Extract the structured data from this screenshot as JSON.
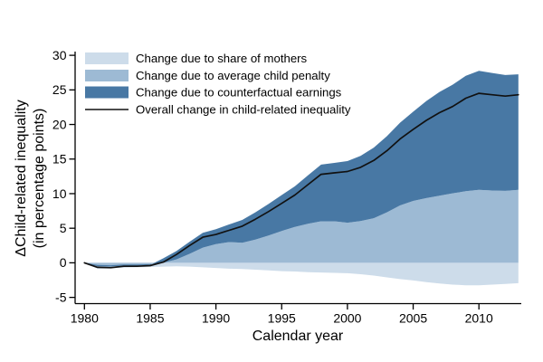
{
  "figure": {
    "x_axis": {
      "title": "Calendar year",
      "ticks": [
        1980,
        1985,
        1990,
        1995,
        2000,
        2005,
        2010
      ]
    },
    "y_axis": {
      "title_line1": "ΔChild-related inequality",
      "title_line2": "(in percentage points)",
      "ticks": [
        -5,
        0,
        5,
        10,
        15,
        20,
        25,
        30
      ]
    },
    "legend": [
      {
        "label": "Change due to share of mothers",
        "swatch": "area",
        "color": "#cddcea"
      },
      {
        "label": "Change due to average child penalty",
        "swatch": "area",
        "color": "#9dbad4"
      },
      {
        "label": "Change due to counterfactual earnings",
        "swatch": "area",
        "color": "#4878a4"
      },
      {
        "label": "Overall change in child-related inequality",
        "swatch": "line",
        "color": "#111111"
      }
    ]
  },
  "chart_data": {
    "type": "area",
    "title": "",
    "xlabel": "Calendar year",
    "ylabel": "ΔChild-related inequality (in percentage points)",
    "xlim": [
      1980,
      2013
    ],
    "ylim": [
      -5,
      30
    ],
    "grid": false,
    "legend_position": "top-left-inside",
    "x": [
      1980,
      1981,
      1982,
      1983,
      1984,
      1985,
      1986,
      1987,
      1988,
      1989,
      1990,
      1991,
      1992,
      1993,
      1994,
      1995,
      1996,
      1997,
      1998,
      1999,
      2000,
      2001,
      2002,
      2003,
      2004,
      2005,
      2006,
      2007,
      2008,
      2009,
      2010,
      2011,
      2012,
      2013
    ],
    "series": [
      {
        "name": "Change due to share of mothers",
        "type": "stacked-area",
        "stack": "negative-from-zero",
        "color": "#cddcea",
        "values": [
          0,
          -0.85,
          -0.8,
          -0.7,
          -0.65,
          -0.6,
          -0.55,
          -0.5,
          -0.55,
          -0.65,
          -0.75,
          -0.85,
          -0.9,
          -1.0,
          -1.1,
          -1.2,
          -1.25,
          -1.35,
          -1.4,
          -1.45,
          -1.5,
          -1.65,
          -1.85,
          -2.1,
          -2.35,
          -2.55,
          -2.8,
          -3.0,
          -3.15,
          -3.25,
          -3.25,
          -3.15,
          -3.05,
          -2.95
        ]
      },
      {
        "name": "Change due to average child penalty",
        "type": "stacked-area",
        "stack": "from-zero",
        "color": "#9dbad4",
        "values": [
          0,
          -0.3,
          -0.35,
          -0.25,
          -0.25,
          -0.2,
          0,
          0.5,
          1.3,
          2.2,
          2.7,
          3.0,
          2.9,
          3.35,
          3.95,
          4.6,
          5.2,
          5.65,
          6.0,
          6.0,
          5.8,
          6.05,
          6.45,
          7.3,
          8.3,
          8.95,
          9.35,
          9.7,
          10.05,
          10.35,
          10.55,
          10.45,
          10.4,
          10.55
        ]
      },
      {
        "name": "Change due to counterfactual earnings",
        "type": "stacked-area",
        "stack": "on-top-of-previous",
        "color": "#4878a4",
        "values": [
          0,
          -0.2,
          -0.2,
          -0.15,
          -0.15,
          -0.12,
          0.65,
          1.2,
          1.75,
          2.15,
          2.15,
          2.55,
          3.3,
          3.95,
          4.55,
          5.2,
          5.85,
          7.0,
          8.2,
          8.45,
          8.9,
          9.4,
          10.2,
          11.0,
          11.95,
          12.9,
          14.05,
          15.0,
          15.7,
          16.7,
          17.2,
          17.0,
          16.75,
          16.7
        ]
      },
      {
        "name": "Overall change in child-related inequality",
        "type": "line",
        "color": "#111111",
        "values": [
          0,
          -0.65,
          -0.7,
          -0.5,
          -0.5,
          -0.4,
          0.1,
          1.2,
          2.5,
          3.7,
          4.1,
          4.7,
          5.3,
          6.3,
          7.4,
          8.6,
          9.8,
          11.3,
          12.8,
          13.0,
          13.2,
          13.8,
          14.8,
          16.2,
          17.9,
          19.3,
          20.6,
          21.7,
          22.6,
          23.8,
          24.5,
          24.3,
          24.1,
          24.3
        ]
      }
    ]
  }
}
